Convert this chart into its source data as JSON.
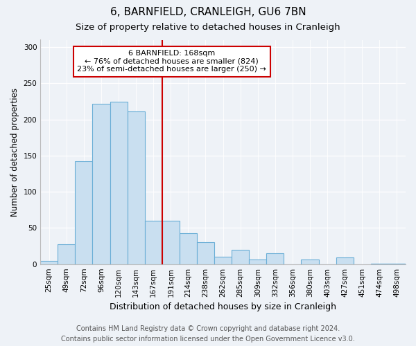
{
  "title": "6, BARNFIELD, CRANLEIGH, GU6 7BN",
  "subtitle": "Size of property relative to detached houses in Cranleigh",
  "xlabel": "Distribution of detached houses by size in Cranleigh",
  "ylabel": "Number of detached properties",
  "bar_color": "#c9dff0",
  "bar_edge_color": "#6aaed6",
  "background_color": "#eef2f7",
  "grid_color": "#ffffff",
  "annotation_line_color": "#cc0000",
  "annotation_box_color": "#ffffff",
  "annotation_box_edge": "#cc0000",
  "categories": [
    "25sqm",
    "49sqm",
    "72sqm",
    "96sqm",
    "120sqm",
    "143sqm",
    "167sqm",
    "191sqm",
    "214sqm",
    "238sqm",
    "262sqm",
    "285sqm",
    "309sqm",
    "332sqm",
    "356sqm",
    "380sqm",
    "403sqm",
    "427sqm",
    "451sqm",
    "474sqm",
    "498sqm"
  ],
  "values": [
    4,
    27,
    142,
    222,
    224,
    211,
    60,
    60,
    43,
    30,
    10,
    20,
    6,
    15,
    0,
    6,
    0,
    9,
    0,
    1,
    1
  ],
  "ylim": [
    0,
    310
  ],
  "yticks": [
    0,
    50,
    100,
    150,
    200,
    250,
    300
  ],
  "property_bar_index": 6,
  "annotation_title": "6 BARNFIELD: 168sqm",
  "annotation_line1": "← 76% of detached houses are smaller (824)",
  "annotation_line2": "23% of semi-detached houses are larger (250) →",
  "footer_line1": "Contains HM Land Registry data © Crown copyright and database right 2024.",
  "footer_line2": "Contains public sector information licensed under the Open Government Licence v3.0.",
  "title_fontsize": 11,
  "subtitle_fontsize": 9.5,
  "xlabel_fontsize": 9,
  "ylabel_fontsize": 8.5,
  "tick_fontsize": 7.5,
  "annotation_fontsize": 8,
  "footer_fontsize": 7
}
